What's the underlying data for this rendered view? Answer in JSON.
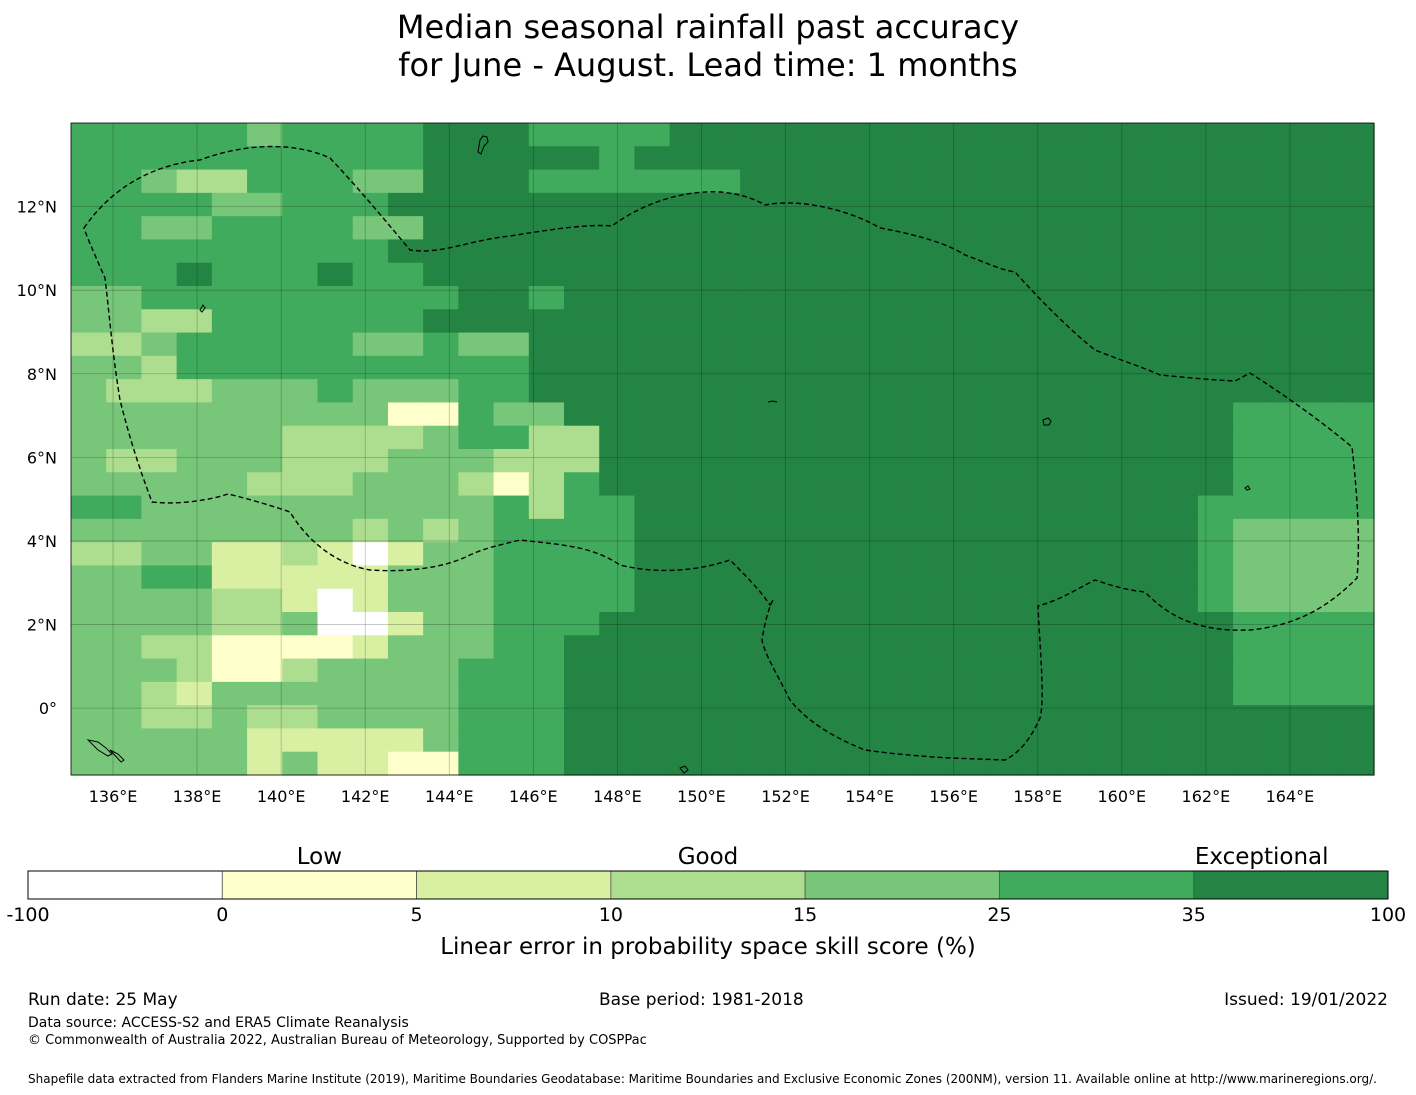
{
  "title": {
    "line1": "Median seasonal rainfall past accuracy",
    "line2": "for June - August. Lead time: 1 months"
  },
  "map": {
    "lon_range": [
      135,
      166
    ],
    "lat_range": [
      -1.6,
      14
    ],
    "x_ticks": [
      "136°E",
      "138°E",
      "140°E",
      "142°E",
      "144°E",
      "146°E",
      "148°E",
      "150°E",
      "152°E",
      "154°E",
      "156°E",
      "158°E",
      "160°E",
      "162°E",
      "164°E"
    ],
    "y_ticks": [
      "12°N",
      "10°N",
      "8°N",
      "6°N",
      "4°N",
      "2°N",
      "0°"
    ],
    "grid": true,
    "palette": [
      "#ffffff",
      "#ffffcc",
      "#d9f0a3",
      "#addd8e",
      "#78c679",
      "#41ab5d",
      "#238443"
    ],
    "grid_rows_top_to_bottom": [
      "5555545555666555555666666666666666666",
      "5555555555566665666666666666666666666",
      "5543335544666655555666666666666666666",
      "5555555556666666666666666666666666666",
      "5555555556666666666666666666666666666",
      "5555555556666666666666666666666666666",
      "5555555555666666666666666666666666666",
      "4455555555566666666666666666666666666",
      "4455555555556666666666666666666666666",
      "4445555555566666666666666666666666666",
      "4435555555555666666666666666666666666",
      "4444444544455666666666666666666666666",
      "4444444444455566666666666666666665555",
      "4444444444455566666666666666666665555",
      "4444444444445556666666666666666665555",
      "4444444444445556666666666666666665555",
      "5444444444445555666666666666666655555",
      "4444444444445555666666666666666654444",
      "4444444444445555666666666666666654444",
      "4444444444445555666666666666666654444",
      "4444444444445555666666666666666654444",
      "4444444444445556666666666666666665555",
      "4444444444445566666666666666666665555",
      "4444444444455566666666666666666665555",
      "4444444444455566666666666666666665555",
      "4444444444455566666666666666666666666",
      "4444444444455566666666666666666666666",
      "4444444444455566666666666666666666666"
    ],
    "cell_overrides": [
      [
        "r1c10",
        6
      ],
      [
        "r1c11",
        6
      ],
      [
        "r0c17",
        6
      ],
      [
        "r0c18",
        6
      ],
      [
        "r2c13",
        5
      ],
      [
        "r2c14",
        5
      ],
      [
        "r2c5",
        5
      ],
      [
        "r2c6",
        5
      ],
      [
        "r3c4",
        4
      ],
      [
        "r3c5",
        4
      ],
      [
        "r4c2",
        4
      ],
      [
        "r4c3",
        4
      ],
      [
        "r4c8",
        4
      ],
      [
        "r4c9",
        4
      ],
      [
        "r4c9b",
        4
      ],
      [
        "r5c9",
        6
      ],
      [
        "r5c10",
        6
      ],
      [
        "r6c3",
        6
      ],
      [
        "r6c7",
        6
      ],
      [
        "r7c13",
        5
      ],
      [
        "r7c14",
        6
      ],
      [
        "r8c2",
        3
      ],
      [
        "r8c3",
        3
      ],
      [
        "r8c10",
        6
      ],
      [
        "r8c11",
        6
      ],
      [
        "r9c0",
        3
      ],
      [
        "r9c1",
        3
      ],
      [
        "r9c8",
        4
      ],
      [
        "r9c9",
        4
      ],
      [
        "r9c11",
        4
      ],
      [
        "r9c12",
        4
      ],
      [
        "r10c13",
        6
      ],
      [
        "r10c14",
        6
      ],
      [
        "r11c1",
        3
      ],
      [
        "r11c2",
        3
      ],
      [
        "r11c3",
        3
      ],
      [
        "r11c9",
        4
      ],
      [
        "r11c10",
        4
      ],
      [
        "r12c9",
        1
      ],
      [
        "r12c10",
        1
      ],
      [
        "r12c12",
        4
      ],
      [
        "r12c13",
        4
      ],
      [
        "r13c6",
        3
      ],
      [
        "r13c7",
        3
      ],
      [
        "r13c8",
        3
      ],
      [
        "r13c9",
        3
      ],
      [
        "r13c13",
        3
      ],
      [
        "r13c14",
        3
      ],
      [
        "r14c1",
        3
      ],
      [
        "r14c2",
        3
      ],
      [
        "r14c6",
        3
      ],
      [
        "r14c7",
        3
      ],
      [
        "r14c8",
        3
      ],
      [
        "r14c12",
        3
      ],
      [
        "r14c13",
        3
      ],
      [
        "r14c14",
        3
      ],
      [
        "r15c5",
        3
      ],
      [
        "r15c6",
        3
      ],
      [
        "r15c7",
        3
      ],
      [
        "r15c11",
        3
      ],
      [
        "r15c12",
        1
      ],
      [
        "r15c13",
        3
      ],
      [
        "r16c0",
        5
      ],
      [
        "r16c1",
        5
      ],
      [
        "r16c13",
        3
      ],
      [
        "r17c8",
        3
      ],
      [
        "r17c10",
        3
      ],
      [
        "r18c0",
        3
      ],
      [
        "r18c1",
        3
      ],
      [
        "r18c4",
        2
      ],
      [
        "r18c5",
        2
      ],
      [
        "r18c6",
        3
      ],
      [
        "r18c7",
        2
      ],
      [
        "r18c8",
        0
      ],
      [
        "r18c9",
        2
      ],
      [
        "r19c2",
        5
      ],
      [
        "r19c3",
        5
      ],
      [
        "r19c4",
        2
      ],
      [
        "r19c5",
        2
      ],
      [
        "r19c6",
        2
      ],
      [
        "r19c7",
        2
      ],
      [
        "r19c8",
        2
      ],
      [
        "r20c4",
        3
      ],
      [
        "r20c5",
        3
      ],
      [
        "r20c6",
        2
      ],
      [
        "r20c7",
        0
      ],
      [
        "r20c8",
        2
      ],
      [
        "r21c4",
        3
      ],
      [
        "r21c5",
        3
      ],
      [
        "r21c7",
        0
      ],
      [
        "r21c8",
        0
      ],
      [
        "r21c9",
        2
      ],
      [
        "r22c2",
        3
      ],
      [
        "r22c3",
        3
      ],
      [
        "r22c4",
        1
      ],
      [
        "r22c5",
        1
      ],
      [
        "r22c6",
        1
      ],
      [
        "r22c7",
        1
      ],
      [
        "r22c8",
        2
      ],
      [
        "r23c3",
        3
      ],
      [
        "r23c4",
        1
      ],
      [
        "r23c5",
        1
      ],
      [
        "r23c6",
        3
      ],
      [
        "r24c2",
        3
      ],
      [
        "r24c3",
        2
      ],
      [
        "r25c2",
        3
      ],
      [
        "r25c3",
        3
      ],
      [
        "r25c5",
        3
      ],
      [
        "r25c6",
        3
      ],
      [
        "r26c5",
        2
      ],
      [
        "r26c6",
        2
      ],
      [
        "r26c7",
        2
      ],
      [
        "r26c8",
        2
      ],
      [
        "r26c9",
        2
      ],
      [
        "r27c5",
        2
      ],
      [
        "r27c7",
        2
      ],
      [
        "r27c8",
        2
      ],
      [
        "r27c9",
        1
      ],
      [
        "r27c10",
        1
      ]
    ]
  },
  "colorbar": {
    "category_labels": [
      "Low",
      "Good",
      "Exceptional"
    ],
    "boundaries": [
      "-100",
      "0",
      "5",
      "10",
      "15",
      "25",
      "35",
      "100"
    ],
    "colors": [
      "#ffffff",
      "#ffffcc",
      "#d9f0a3",
      "#addd8e",
      "#78c679",
      "#41ab5d",
      "#238443"
    ],
    "label": "Linear error in probability space skill score (%)"
  },
  "footer": {
    "run_date": "Run date: 25 May",
    "base_period": "Base period: 1981-2018",
    "issued": "Issued: 19/01/2022",
    "data_source": "Data source: ACCESS-S2 and ERA5 Climate Reanalysis",
    "copyright": "© Commonwealth of Australia 2022, Australian Bureau of Meteorology, Supported by COSPPac",
    "shapefile": "Shapefile data extracted from Flanders Marine Institute (2019), Maritime Boundaries Geodatabase: Maritime Boundaries and Exclusive Economic Zones (200NM), version 11. Available online at http://www.marineregions.org/."
  }
}
